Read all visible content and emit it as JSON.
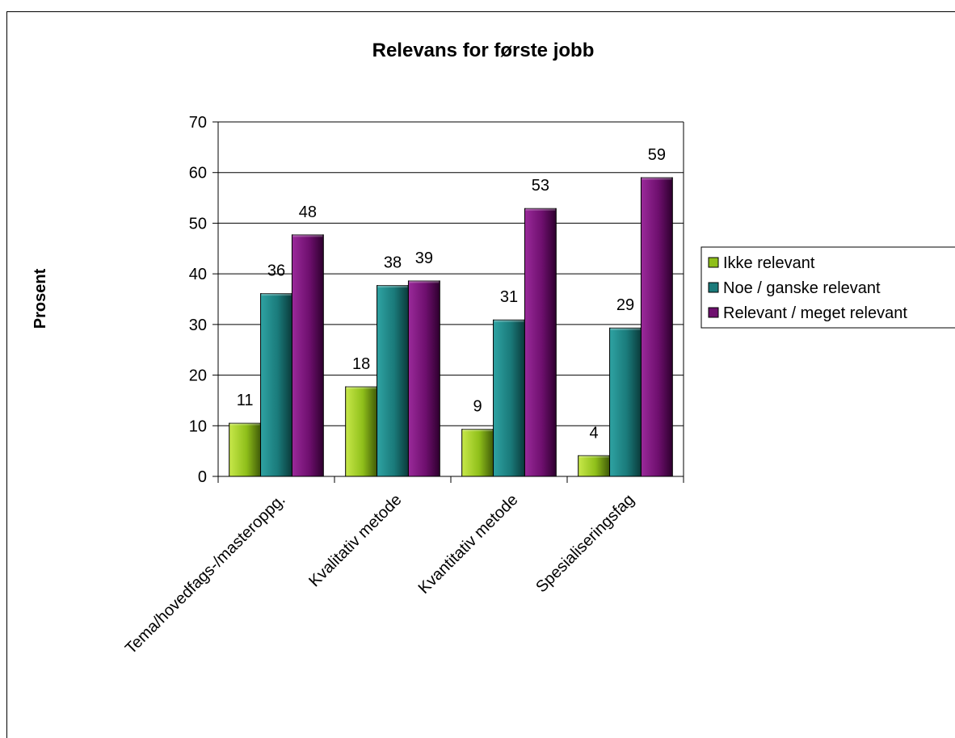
{
  "chart_data": {
    "type": "bar",
    "title": "Relevans for første jobb",
    "xlabel": "",
    "ylabel": "Prosent",
    "ylim": [
      0,
      70
    ],
    "yticks": [
      0,
      10,
      20,
      30,
      40,
      50,
      60,
      70
    ],
    "grid": true,
    "legend_position": "right",
    "categories": [
      "Tema/hovedfags-/masteroppg.",
      "Kvalitativ metode",
      "Kvantitativ metode",
      "Spesialiseringsfag"
    ],
    "series": [
      {
        "name": "Ikke relevant",
        "values": [
          10.5,
          17.7,
          9.3,
          4.1
        ],
        "labels": [
          "11",
          "18",
          "9",
          "4"
        ],
        "color": "#8fbf1a"
      },
      {
        "name": "Noe / ganske relevant",
        "values": [
          36.1,
          37.7,
          30.9,
          29.3
        ],
        "labels": [
          "36",
          "38",
          "31",
          "29"
        ],
        "color": "#1a7a7a"
      },
      {
        "name": "Relevant / meget relevant",
        "values": [
          47.7,
          38.6,
          52.9,
          59.0
        ],
        "labels": [
          "48",
          "39",
          "53",
          "59"
        ],
        "color": "#6e0f6e"
      }
    ]
  }
}
